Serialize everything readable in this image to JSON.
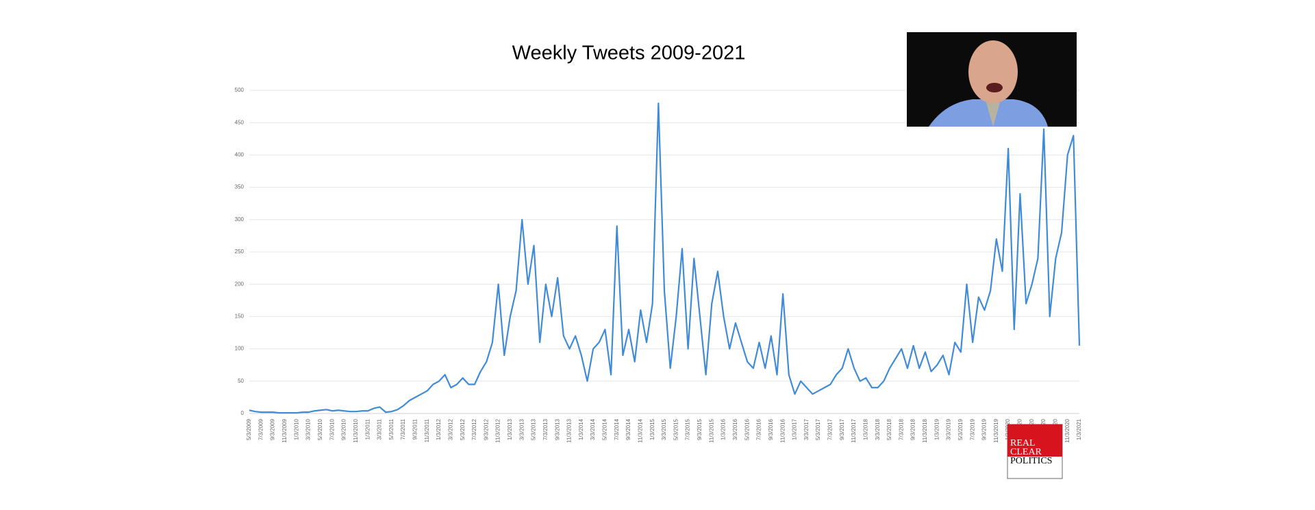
{
  "chart_data": {
    "type": "line",
    "title": "Weekly Tweets 2009-2021",
    "x": [
      "5/3/2009",
      null,
      "7/3/2009",
      null,
      "9/3/2009",
      null,
      "11/3/2009",
      null,
      "1/3/2010",
      null,
      "3/3/2010",
      null,
      "5/3/2010",
      null,
      "7/3/2010",
      null,
      "9/3/2010",
      null,
      "11/3/2010",
      null,
      "1/3/2011",
      null,
      "3/3/2011",
      null,
      "5/3/2011",
      null,
      "7/3/2011",
      null,
      "9/3/2011",
      null,
      "11/3/2011",
      null,
      "1/3/2012",
      null,
      "3/3/2012",
      null,
      "5/3/2012",
      null,
      "7/3/2012",
      null,
      "9/3/2012",
      null,
      "11/3/2012",
      null,
      "1/3/2013",
      null,
      "3/3/2013",
      null,
      "5/3/2013",
      null,
      "7/3/2013",
      null,
      "9/3/2013",
      null,
      "11/3/2013",
      null,
      "1/3/2014",
      null,
      "3/3/2014",
      null,
      "5/3/2014",
      null,
      "7/3/2014",
      null,
      "9/3/2014",
      null,
      "11/3/2014",
      null,
      "1/3/2015",
      null,
      "3/3/2015",
      null,
      "5/3/2015",
      null,
      "7/3/2015",
      null,
      "9/3/2015",
      null,
      "11/3/2015",
      null,
      "1/3/2016",
      null,
      "3/3/2016",
      null,
      "5/3/2016",
      null,
      "7/3/2016",
      null,
      "9/3/2016",
      null,
      "11/3/2016",
      null,
      "1/3/2017",
      null,
      "3/3/2017",
      null,
      "5/3/2017",
      null,
      "7/3/2017",
      null,
      "9/3/2017",
      null,
      "11/3/2017",
      null,
      "1/3/2018",
      null,
      "3/3/2018",
      null,
      "5/3/2018",
      null,
      "7/3/2018",
      null,
      "9/3/2018",
      null,
      "11/3/2018",
      null,
      "1/3/2019",
      null,
      "3/3/2019",
      null,
      "5/3/2019",
      null,
      "7/3/2019",
      null,
      "9/3/2019",
      null,
      "11/3/2019",
      null,
      "1/3/2020",
      null,
      "3/3/2020",
      null,
      "5/3/2020",
      null,
      "7/3/2020",
      null,
      "9/3/2020",
      null,
      "11/3/2020",
      null,
      "1/3/2021"
    ],
    "series": [
      {
        "color": "#3f8bd6",
        "values": [
          5,
          3,
          2,
          2,
          2,
          1,
          1,
          1,
          1,
          2,
          2,
          4,
          5,
          6,
          4,
          5,
          4,
          3,
          3,
          4,
          4,
          8,
          10,
          2,
          3,
          6,
          12,
          20,
          25,
          30,
          35,
          45,
          50,
          60,
          40,
          45,
          55,
          45,
          45,
          65,
          80,
          110,
          200,
          90,
          150,
          190,
          300,
          200,
          260,
          110,
          200,
          150,
          210,
          120,
          100,
          120,
          90,
          50,
          100,
          110,
          130,
          60,
          290,
          90,
          130,
          80,
          160,
          110,
          170,
          480,
          190,
          70,
          150,
          255,
          100,
          240,
          150,
          60,
          170,
          220,
          150,
          100,
          140,
          110,
          80,
          70,
          110,
          70,
          120,
          60,
          185,
          60,
          30,
          50,
          40,
          30,
          35,
          40,
          45,
          60,
          70,
          100,
          70,
          50,
          55,
          40,
          40,
          50,
          70,
          85,
          100,
          70,
          105,
          70,
          95,
          65,
          75,
          90,
          60,
          110,
          95,
          200,
          110,
          180,
          160,
          190,
          270,
          220,
          410,
          130,
          340,
          170,
          200,
          240,
          440,
          150,
          240,
          280,
          400,
          430,
          105
        ]
      }
    ],
    "ylim": [
      0,
      500
    ],
    "yticks": [
      0,
      50,
      100,
      150,
      200,
      250,
      300,
      350,
      400,
      450,
      500
    ],
    "grid": true
  },
  "logo": {
    "line1": "REAL",
    "line2": "CLEAR",
    "line3": "POLITICS"
  }
}
